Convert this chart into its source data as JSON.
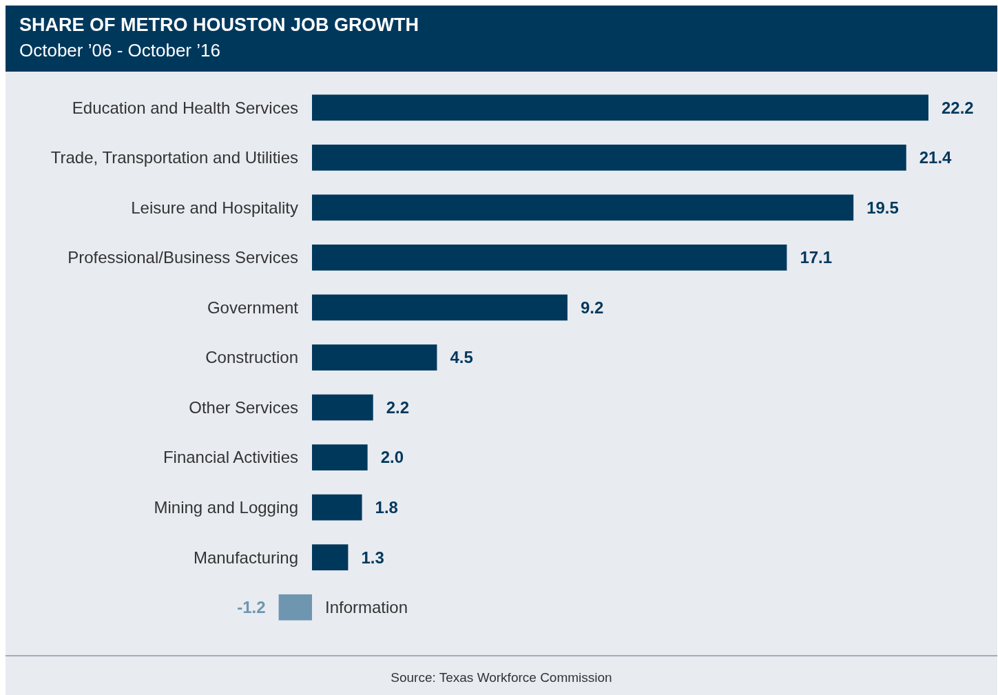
{
  "chart_data": {
    "type": "bar",
    "orientation": "horizontal",
    "title": "SHARE OF METRO HOUSTON JOB GROWTH",
    "subtitle": "October ’06 - October ’16",
    "categories": [
      "Education and Health Services",
      "Trade, Transportation and Utilities",
      "Leisure and Hospitality",
      "Professional/Business Services",
      "Government",
      "Construction",
      "Other Services",
      "Financial Activities",
      "Mining and Logging",
      "Manufacturing",
      "Information"
    ],
    "values": [
      22.2,
      21.4,
      19.5,
      17.1,
      9.2,
      4.5,
      2.2,
      2.0,
      1.8,
      1.3,
      -1.2
    ],
    "colors": [
      "#00385c",
      "#00385c",
      "#00385c",
      "#00385c",
      "#00385c",
      "#00385c",
      "#00385c",
      "#00385c",
      "#00385c",
      "#00385c",
      "#6f96b0"
    ],
    "value_labels": [
      "22.2",
      "21.4",
      "19.5",
      "17.1",
      "9.2",
      "4.5",
      "2.2",
      "2.0",
      "1.8",
      "1.3",
      "-1.2"
    ],
    "annotations": [
      "Source: Texas Workforce Commission"
    ]
  }
}
